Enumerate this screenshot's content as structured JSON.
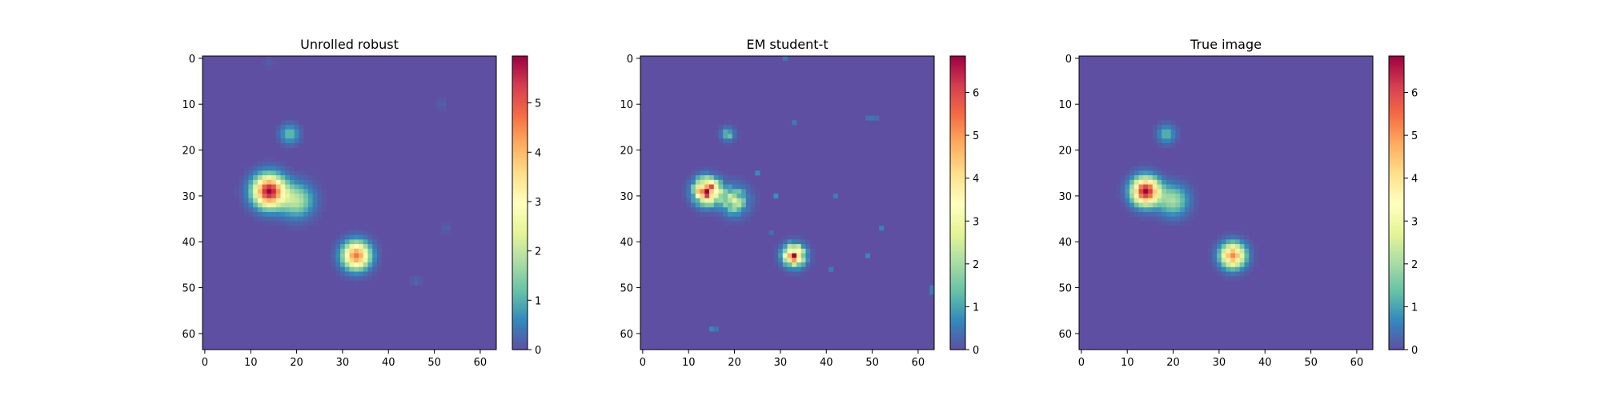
{
  "chart_data": [
    {
      "type": "heatmap",
      "title": "Unrolled robust",
      "xlim": [
        0,
        63
      ],
      "ylim": [
        0,
        63
      ],
      "x_ticks": [
        "0",
        "10",
        "20",
        "30",
        "40",
        "50",
        "60"
      ],
      "y_ticks": [
        "0",
        "10",
        "20",
        "30",
        "40",
        "50",
        "60"
      ],
      "colorbar": {
        "min": 0,
        "max": 5.95,
        "ticks": [
          "0",
          "1",
          "2",
          "3",
          "4",
          "5"
        ],
        "colormap": "Spectral_r"
      },
      "blobs": [
        {
          "x": 14,
          "y": 29,
          "amplitude": 5.9,
          "sigma": 2.3
        },
        {
          "x": 20,
          "y": 31,
          "amplitude": 1.9,
          "sigma": 2.4
        },
        {
          "x": 33,
          "y": 43,
          "amplitude": 4.7,
          "sigma": 2.0
        },
        {
          "x": 18.5,
          "y": 16.5,
          "amplitude": 1.2,
          "sigma": 1.4
        },
        {
          "x": 46,
          "y": 48.5,
          "amplitude": 0.25,
          "sigma": 0.8
        },
        {
          "x": 52.5,
          "y": 37,
          "amplitude": 0.2,
          "sigma": 0.8
        },
        {
          "x": 51.5,
          "y": 10,
          "amplitude": 0.2,
          "sigma": 0.8
        },
        {
          "x": 14,
          "y": 1,
          "amplitude": 0.15,
          "sigma": 0.8
        }
      ]
    },
    {
      "type": "heatmap",
      "title": "EM student-t",
      "xlim": [
        0,
        63
      ],
      "ylim": [
        0,
        63
      ],
      "x_ticks": [
        "0",
        "10",
        "20",
        "30",
        "40",
        "50",
        "60"
      ],
      "y_ticks": [
        "0",
        "10",
        "20",
        "30",
        "40",
        "50",
        "60"
      ],
      "colorbar": {
        "min": 0,
        "max": 6.85,
        "ticks": [
          "0",
          "1",
          "2",
          "3",
          "4",
          "5",
          "6"
        ],
        "colormap": "Spectral_r"
      },
      "blobs": [
        {
          "x": 14,
          "y": 29,
          "amplitude": 6.3,
          "sigma": 1.8
        },
        {
          "x": 20,
          "y": 31,
          "amplitude": 2.2,
          "sigma": 2.0
        },
        {
          "x": 33,
          "y": 43,
          "amplitude": 5.6,
          "sigma": 1.5
        },
        {
          "x": 18.5,
          "y": 16.5,
          "amplitude": 1.3,
          "sigma": 1.0
        }
      ],
      "noise": 0.35,
      "speckles": [
        [
          31,
          0
        ],
        [
          33,
          14
        ],
        [
          49,
          13
        ],
        [
          50,
          13
        ],
        [
          51,
          13
        ],
        [
          42,
          30
        ],
        [
          29,
          30
        ],
        [
          52,
          37
        ],
        [
          41,
          46
        ],
        [
          49,
          43
        ],
        [
          15,
          59
        ],
        [
          16,
          59
        ],
        [
          63,
          50
        ],
        [
          63,
          51
        ],
        [
          28,
          38
        ],
        [
          25,
          25
        ],
        [
          21,
          34
        ]
      ]
    },
    {
      "type": "heatmap",
      "title": "True image",
      "xlim": [
        0,
        63
      ],
      "ylim": [
        0,
        63
      ],
      "x_ticks": [
        "0",
        "10",
        "20",
        "30",
        "40",
        "50",
        "60"
      ],
      "y_ticks": [
        "0",
        "10",
        "20",
        "30",
        "40",
        "50",
        "60"
      ],
      "colorbar": {
        "min": 0,
        "max": 6.85,
        "ticks": [
          "0",
          "1",
          "2",
          "3",
          "4",
          "5",
          "6"
        ],
        "colormap": "Spectral_r"
      },
      "blobs": [
        {
          "x": 14,
          "y": 29,
          "amplitude": 6.8,
          "sigma": 2.0
        },
        {
          "x": 20,
          "y": 31,
          "amplitude": 2.0,
          "sigma": 2.2
        },
        {
          "x": 33,
          "y": 43,
          "amplitude": 5.2,
          "sigma": 1.8
        },
        {
          "x": 18.5,
          "y": 16.5,
          "amplitude": 1.3,
          "sigma": 1.3
        }
      ]
    }
  ]
}
